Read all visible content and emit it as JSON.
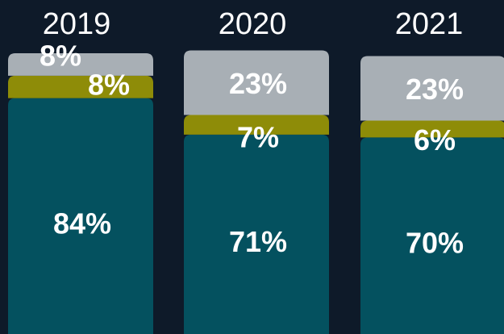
{
  "chart_data": {
    "type": "bar",
    "stacked": true,
    "categories": [
      "2019",
      "2020",
      "2021"
    ],
    "series": [
      {
        "color": "#04515f",
        "values": [
          84,
          71,
          70
        ],
        "value_labels": [
          "84%",
          "71%",
          "70%"
        ]
      },
      {
        "color": "#8e8c08",
        "values": [
          8,
          7,
          6
        ],
        "value_labels": [
          "8%",
          "7%",
          "6%"
        ]
      },
      {
        "color": "#a8afb5",
        "values": [
          8,
          23,
          23
        ],
        "value_labels": [
          "8%",
          "23%",
          "23%"
        ]
      }
    ],
    "ylim": [
      0,
      100
    ]
  }
}
